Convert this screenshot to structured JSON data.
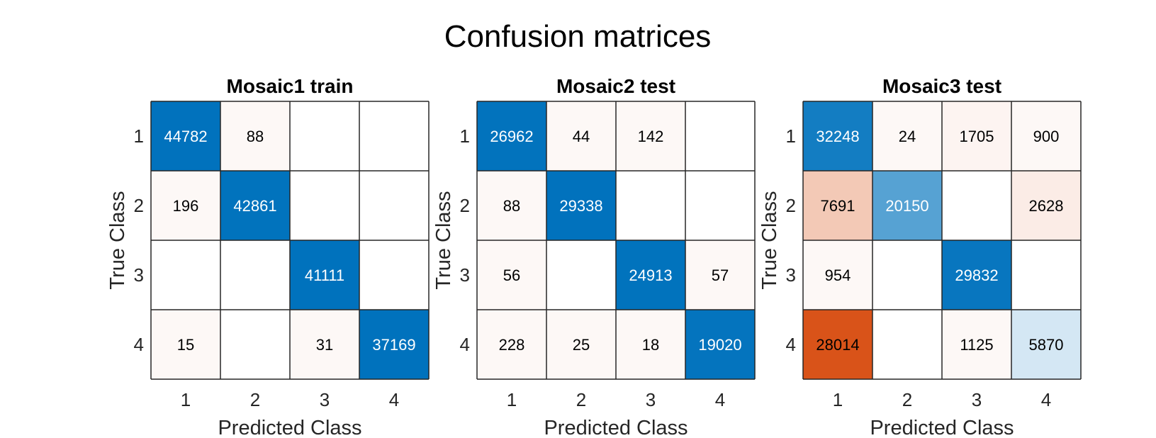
{
  "figure_title": "Confusion matrices",
  "colors": {
    "correct_high": "#0072bd",
    "correct_low": "#ffffff",
    "error_high": "#d95319",
    "error_low": "#ffffff",
    "grid": "#262626",
    "text_dark": "#000000",
    "text_light": "#ffffff"
  },
  "chart_data": [
    {
      "type": "heatmap",
      "title": "Mosaic1 train",
      "xlabel": "Predicted Class",
      "ylabel": "True Class",
      "x_categories": [
        "1",
        "2",
        "3",
        "4"
      ],
      "y_categories": [
        "1",
        "2",
        "3",
        "4"
      ],
      "values": [
        [
          44782,
          88,
          null,
          null
        ],
        [
          196,
          42861,
          null,
          null
        ],
        [
          null,
          null,
          41111,
          null
        ],
        [
          15,
          null,
          31,
          37169
        ]
      ]
    },
    {
      "type": "heatmap",
      "title": "Mosaic2 test",
      "xlabel": "Predicted Class",
      "ylabel": "True Class",
      "x_categories": [
        "1",
        "2",
        "3",
        "4"
      ],
      "y_categories": [
        "1",
        "2",
        "3",
        "4"
      ],
      "values": [
        [
          26962,
          44,
          142,
          null
        ],
        [
          88,
          29338,
          null,
          null
        ],
        [
          56,
          null,
          24913,
          57
        ],
        [
          228,
          25,
          18,
          19020
        ]
      ]
    },
    {
      "type": "heatmap",
      "title": "Mosaic3 test",
      "xlabel": "Predicted Class",
      "ylabel": "True Class",
      "x_categories": [
        "1",
        "2",
        "3",
        "4"
      ],
      "y_categories": [
        "1",
        "2",
        "3",
        "4"
      ],
      "values": [
        [
          32248,
          24,
          1705,
          900
        ],
        [
          7691,
          20150,
          null,
          2628
        ],
        [
          954,
          null,
          29832,
          null
        ],
        [
          28014,
          null,
          1125,
          5870
        ]
      ]
    }
  ]
}
